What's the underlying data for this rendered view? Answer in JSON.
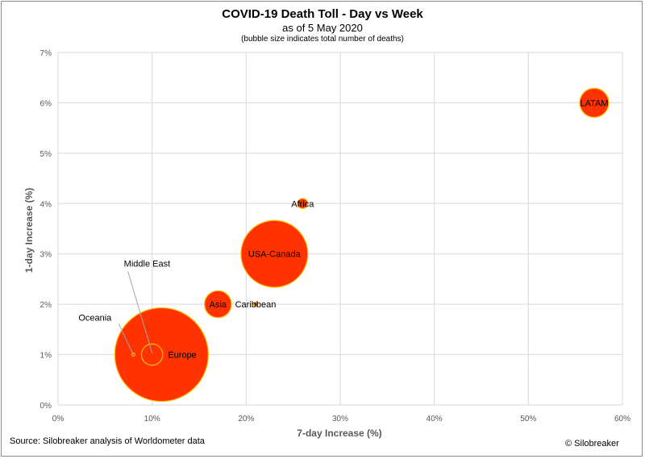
{
  "chart_data": {
    "type": "scatter",
    "title": "COVID-19 Death Toll - Day vs Week",
    "subtitle": "as of 5 May 2020",
    "note": "(bubble size indicates total number of deaths)",
    "xlabel": "7-day Increase (%)",
    "ylabel": "1-day Increase (%)",
    "xlim": [
      0,
      60
    ],
    "ylim": [
      0,
      7
    ],
    "x_ticks": [
      "0%",
      "10%",
      "20%",
      "30%",
      "40%",
      "50%",
      "60%"
    ],
    "y_ticks": [
      "0%",
      "1%",
      "2%",
      "3%",
      "4%",
      "5%",
      "6%",
      "7%"
    ],
    "grid": true,
    "bubble_color": "#ff3300",
    "bubble_edge": "#ffc000",
    "points": [
      {
        "label": "Europe",
        "x": 11,
        "y": 1,
        "size": 145000
      },
      {
        "label": "USA-Canada",
        "x": 23,
        "y": 3,
        "size": 74000
      },
      {
        "label": "Asia",
        "x": 17,
        "y": 2,
        "size": 12000
      },
      {
        "label": "LATAM",
        "x": 57,
        "y": 6,
        "size": 14000
      },
      {
        "label": "Middle East",
        "x": 10,
        "y": 1,
        "size": 7500
      },
      {
        "label": "Africa",
        "x": 26,
        "y": 4,
        "size": 1700
      },
      {
        "label": "Caribbean",
        "x": 21,
        "y": 2,
        "size": 300
      },
      {
        "label": "Oceania",
        "x": 8,
        "y": 1,
        "size": 130
      }
    ]
  },
  "footer": {
    "source": "Source: Silobreaker analysis of Worldometer data",
    "copyright": "© Silobreaker"
  }
}
